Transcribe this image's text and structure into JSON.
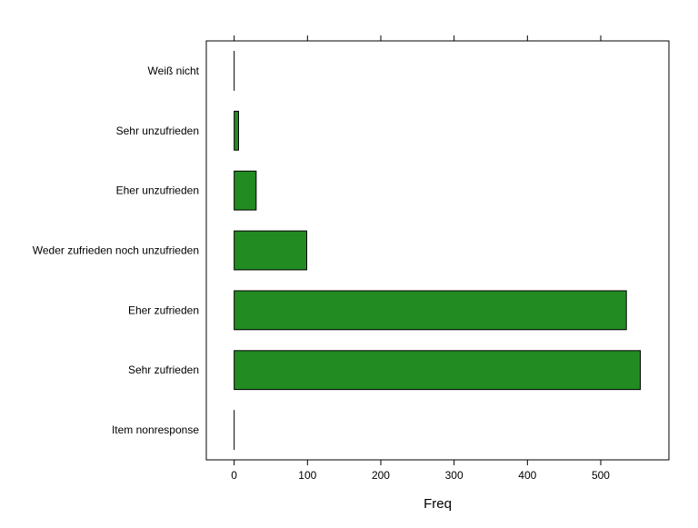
{
  "chart_data": {
    "type": "bar",
    "orientation": "horizontal",
    "categories": [
      "Item nonresponse",
      "Sehr zufrieden",
      "Eher zufrieden",
      "Weder zufrieden noch unzufrieden",
      "Eher unzufrieden",
      "Sehr unzufrieden",
      "Weiß nicht"
    ],
    "values": [
      0,
      554,
      535,
      99,
      30,
      6,
      0
    ],
    "xlabel": "Freq",
    "ylabel": "",
    "xlim": [
      -38,
      593
    ],
    "xticks": [
      0,
      100,
      200,
      300,
      400,
      500
    ],
    "bar_color": "#228B22",
    "grid": false,
    "ticks_top_and_bottom": true
  }
}
